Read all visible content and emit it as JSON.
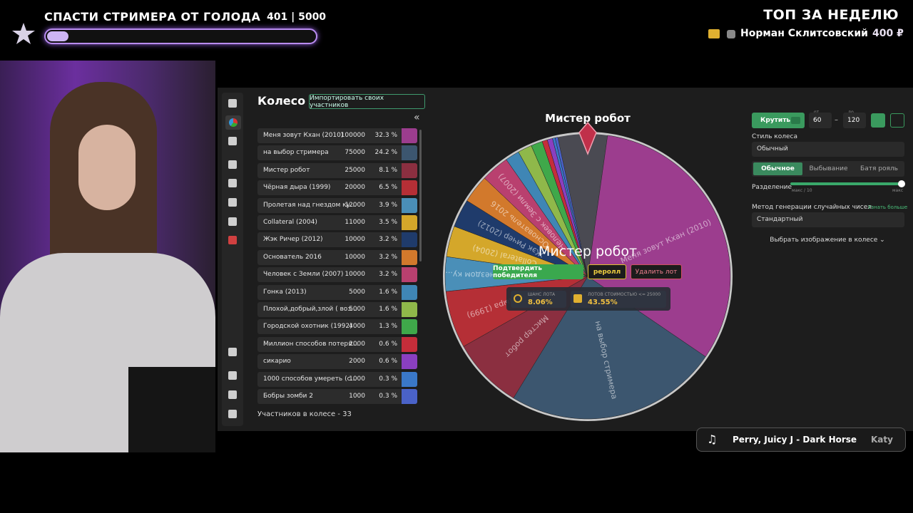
{
  "overlay": {
    "goal": {
      "title": "СПАСТИ СТРИМЕРА ОТ ГОЛОДА",
      "progress": {
        "value": 401,
        "max": 5000,
        "label": "401 | 5000"
      }
    },
    "top": {
      "title": "ТОП ЗА НЕДЕЛЮ",
      "name": "Норман Склитсовский",
      "amount": "400 ₽"
    },
    "music": {
      "track": "Perry, Juicy J - Dark Horse",
      "next": "Katy"
    }
  },
  "app": {
    "title": "Колесо",
    "import_button": "Импортировать своих участников",
    "collapse": "«",
    "lots": [
      {
        "name": "Меня зовут Кхан (2010)",
        "amount": 100000,
        "chance": {
          "value": 32.3,
          "label": "32.3 %"
        },
        "color": "#9c3d8e"
      },
      {
        "name": "на выбор стримера",
        "amount": 75000,
        "chance": {
          "value": 24.2,
          "label": "24.2 %"
        },
        "color": "#3c566f"
      },
      {
        "name": "Мистер робот",
        "amount": 25000,
        "chance": {
          "value": 8.1,
          "label": "8.1 %"
        },
        "color": "#8b2f40"
      },
      {
        "name": "Чёрная дыра (1999)",
        "amount": 20000,
        "chance": {
          "value": 6.5,
          "label": "6.5 %"
        },
        "color": "#b52f36"
      },
      {
        "name": "Пролетая над гнездом ку...",
        "amount": 12000,
        "chance": {
          "value": 3.9,
          "label": "3.9 %"
        },
        "color": "#4a8fb8"
      },
      {
        "name": "Collateral (2004)",
        "amount": 11000,
        "chance": {
          "value": 3.5,
          "label": "3.5 %"
        },
        "color": "#d4a72a"
      },
      {
        "name": "Жэк Ричер (2012)",
        "amount": 10000,
        "chance": {
          "value": 3.2,
          "label": "3.2 %"
        },
        "color": "#1f3b6b"
      },
      {
        "name": "Основатель 2016",
        "amount": 10000,
        "chance": {
          "value": 3.2,
          "label": "3.2 %"
        },
        "color": "#d2792c"
      },
      {
        "name": "Человек с Земли (2007)",
        "amount": 10000,
        "chance": {
          "value": 3.2,
          "label": "3.2 %"
        },
        "color": "#b9406f"
      },
      {
        "name": "Гонка (2013)",
        "amount": 5000,
        "chance": {
          "value": 1.6,
          "label": "1.6 %"
        },
        "color": "#3f86b5"
      },
      {
        "name": "Плохой,добрый,злой ( воз...",
        "amount": 5000,
        "chance": {
          "value": 1.6,
          "label": "1.6 %"
        },
        "color": "#8fb84a"
      },
      {
        "name": "Городской охотник (1992)",
        "amount": 4000,
        "chance": {
          "value": 1.3,
          "label": "1.3 %"
        },
        "color": "#3fa84a"
      },
      {
        "name": "Миллион способов потеря...",
        "amount": 2000,
        "chance": {
          "value": 0.6,
          "label": "0.6 %"
        },
        "color": "#c52d3a"
      },
      {
        "name": "сикарио",
        "amount": 2000,
        "chance": {
          "value": 0.6,
          "label": "0.6 %"
        },
        "color": "#8a3fc0"
      },
      {
        "name": "1000 способов умереть (с...",
        "amount": 1000,
        "chance": {
          "value": 0.3,
          "label": "0.3 %"
        },
        "color": "#3a78c8"
      },
      {
        "name": "Бобры зомби 2",
        "amount": 1000,
        "chance": {
          "value": 0.3,
          "label": "0.3 %"
        },
        "color": "#4a62c8"
      }
    ],
    "participants": "Участников в колесе - 33",
    "wheel": {
      "winner": "Мистер робот",
      "confirm": "Подтвердить победителя",
      "reroll": "реролл",
      "delete": "Удалить лот",
      "chance_label": "ШАНС ЛОТА",
      "chance": "8.06%",
      "cheaper_label": "ЛОТОВ СТОИМОСТЬЮ <= 25000",
      "cheaper": "43.55%"
    },
    "settings": {
      "spin": "Крутить",
      "from_label": "от",
      "from": 60,
      "dash": "–",
      "to_label": "до",
      "to": 120,
      "style_label": "Стиль колеса",
      "style": "Обычный",
      "modes": [
        "Обычное",
        "Выбывание",
        "Батя рояль"
      ],
      "split_label": "Разделение",
      "split_min": "макс / 10",
      "split_max": "макс",
      "rng_label": "Метод генерации случайных чисел",
      "rng_more": "Узнать больше",
      "rng": "Стандартный",
      "image": "Выбрать изображение в колесе"
    }
  }
}
